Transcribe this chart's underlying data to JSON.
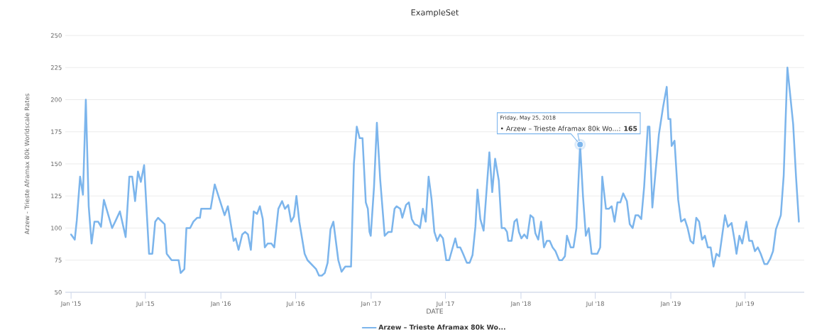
{
  "chart_data": {
    "type": "line",
    "title": "ExampleSet",
    "xlabel": "DATE",
    "ylabel": "Arzew - Trieste Aframax 80k Worldscale Rates",
    "x": [
      "2015-01-01",
      "2015-01-10",
      "2015-01-15",
      "2015-01-23",
      "2015-01-30",
      "2015-02-06",
      "2015-02-13",
      "2015-02-20",
      "2015-02-27",
      "2015-03-08",
      "2015-03-15",
      "2015-03-22",
      "2015-04-01",
      "2015-04-11",
      "2015-04-20",
      "2015-04-30",
      "2015-05-14",
      "2015-05-23",
      "2015-05-30",
      "2015-06-06",
      "2015-06-13",
      "2015-06-20",
      "2015-06-28",
      "2015-07-10",
      "2015-07-18",
      "2015-07-25",
      "2015-08-01",
      "2015-08-17",
      "2015-08-22",
      "2015-09-03",
      "2015-09-20",
      "2015-09-25",
      "2015-10-04",
      "2015-10-09",
      "2015-10-18",
      "2015-10-26",
      "2015-11-04",
      "2015-11-11",
      "2015-11-14",
      "2015-12-07",
      "2015-12-17",
      "2016-01-10",
      "2016-01-18",
      "2016-02-01",
      "2016-02-06",
      "2016-02-13",
      "2016-02-22",
      "2016-02-29",
      "2016-03-07",
      "2016-03-14",
      "2016-03-21",
      "2016-03-29",
      "2016-04-05",
      "2016-04-12",
      "2016-04-17",
      "2016-04-24",
      "2016-05-03",
      "2016-05-10",
      "2016-05-20",
      "2016-05-29",
      "2016-06-05",
      "2016-06-13",
      "2016-06-20",
      "2016-06-27",
      "2016-07-03",
      "2016-07-10",
      "2016-07-23",
      "2016-07-30",
      "2016-08-20",
      "2016-08-27",
      "2016-09-03",
      "2016-09-10",
      "2016-09-17",
      "2016-09-24",
      "2016-10-01",
      "2016-10-13",
      "2016-10-21",
      "2016-10-30",
      "2016-11-13",
      "2016-11-20",
      "2016-11-27",
      "2016-12-04",
      "2016-12-11",
      "2016-12-19",
      "2016-12-24",
      "2016-12-28",
      "2016-12-31",
      "2017-01-08",
      "2017-01-15",
      "2017-01-23",
      "2017-02-03",
      "2017-02-12",
      "2017-02-20",
      "2017-02-27",
      "2017-03-04",
      "2017-03-13",
      "2017-03-18",
      "2017-03-27",
      "2017-04-03",
      "2017-04-10",
      "2017-04-17",
      "2017-04-25",
      "2017-04-30",
      "2017-05-07",
      "2017-05-14",
      "2017-05-21",
      "2017-05-28",
      "2017-06-04",
      "2017-06-11",
      "2017-06-18",
      "2017-06-25",
      "2017-07-03",
      "2017-07-10",
      "2017-07-25",
      "2017-07-30",
      "2017-08-06",
      "2017-08-13",
      "2017-08-22",
      "2017-08-29",
      "2017-09-05",
      "2017-09-12",
      "2017-09-17",
      "2017-09-24",
      "2017-10-02",
      "2017-10-16",
      "2017-10-23",
      "2017-10-30",
      "2017-11-08",
      "2017-11-15",
      "2017-11-22",
      "2017-11-28",
      "2017-12-01",
      "2017-12-09",
      "2017-12-16",
      "2017-12-22",
      "2017-12-27",
      "2018-01-02",
      "2018-01-09",
      "2018-01-16",
      "2018-01-24",
      "2018-01-31",
      "2018-02-05",
      "2018-02-12",
      "2018-02-19",
      "2018-02-26",
      "2018-03-05",
      "2018-03-12",
      "2018-03-19",
      "2018-03-26",
      "2018-04-04",
      "2018-04-11",
      "2018-04-18",
      "2018-04-23",
      "2018-05-02",
      "2018-05-09",
      "2018-05-16",
      "2018-05-25",
      "2018-06-01",
      "2018-06-08",
      "2018-06-15",
      "2018-06-22",
      "2018-07-06",
      "2018-07-13",
      "2018-07-18",
      "2018-07-27",
      "2018-08-03",
      "2018-08-10",
      "2018-08-17",
      "2018-08-24",
      "2018-08-31",
      "2018-09-07",
      "2018-09-16",
      "2018-09-23",
      "2018-09-30",
      "2018-10-07",
      "2018-10-14",
      "2018-10-21",
      "2018-10-28",
      "2018-11-06",
      "2018-11-10",
      "2018-11-17",
      "2018-11-26",
      "2018-12-03",
      "2018-12-13",
      "2018-12-22",
      "2018-12-26",
      "2018-12-31",
      "2019-01-03",
      "2019-01-10",
      "2019-01-19",
      "2019-01-26",
      "2019-02-04",
      "2019-02-11",
      "2019-02-18",
      "2019-02-25",
      "2019-03-04",
      "2019-03-11",
      "2019-03-18",
      "2019-03-25",
      "2019-04-01",
      "2019-04-08",
      "2019-04-15",
      "2019-04-22",
      "2019-04-29",
      "2019-05-06",
      "2019-05-13",
      "2019-05-20",
      "2019-05-29",
      "2019-06-05",
      "2019-06-10",
      "2019-06-17",
      "2019-06-24",
      "2019-07-04",
      "2019-07-11",
      "2019-07-18",
      "2019-07-25",
      "2019-08-01",
      "2019-08-08",
      "2019-08-17",
      "2019-08-24",
      "2019-08-31",
      "2019-09-07",
      "2019-09-14",
      "2019-09-26",
      "2019-10-03",
      "2019-10-12",
      "2019-10-26",
      "2019-11-02",
      "2019-11-09"
    ],
    "series": [
      {
        "name": "Arzew – Trieste Aframax 80k Wo...",
        "color": "#7cb5ec",
        "values": [
          95,
          91,
          106,
          140,
          126,
          200,
          117,
          88,
          105,
          105,
          101,
          122,
          111,
          100,
          106,
          113,
          93,
          140,
          140,
          121,
          144,
          136,
          149,
          80,
          80,
          105,
          108,
          103,
          80,
          75,
          75,
          65,
          68,
          100,
          100,
          105,
          108,
          108,
          115,
          115,
          134,
          110,
          117,
          90,
          92,
          83,
          95,
          97,
          95,
          83,
          113,
          111,
          117,
          107,
          85,
          88,
          88,
          85,
          115,
          121,
          115,
          118,
          105,
          109,
          125,
          105,
          80,
          75,
          68,
          63,
          63,
          65,
          73,
          99,
          105,
          75,
          66,
          70,
          70,
          150,
          179,
          170,
          170,
          120,
          115,
          97,
          94,
          132,
          182,
          138,
          94,
          97,
          97,
          115,
          117,
          115,
          108,
          118,
          120,
          107,
          103,
          102,
          100,
          115,
          105,
          140,
          123,
          97,
          90,
          95,
          92,
          75,
          75,
          92,
          85,
          85,
          80,
          73,
          73,
          79,
          101,
          130,
          107,
          98,
          159,
          128,
          154,
          137,
          100,
          100,
          97,
          90,
          90,
          105,
          107,
          97,
          92,
          95,
          92,
          110,
          108,
          96,
          91,
          105,
          85,
          90,
          90,
          85,
          82,
          75,
          75,
          78,
          94,
          85,
          85,
          100,
          165,
          125,
          94,
          100,
          80,
          80,
          85,
          140,
          115,
          115,
          117,
          105,
          120,
          120,
          127,
          121,
          103,
          100,
          110,
          110,
          107,
          132,
          179,
          179,
          116,
          148,
          173,
          194,
          210,
          185,
          185,
          164,
          168,
          122,
          105,
          107,
          100,
          90,
          88,
          108,
          105,
          91,
          94,
          85,
          85,
          70,
          80,
          78,
          94,
          110,
          101,
          104,
          91,
          80,
          94,
          88,
          105,
          90,
          90,
          82,
          85,
          80,
          72,
          72,
          76,
          82,
          99,
          110,
          141,
          225,
          181,
          140,
          105
        ]
      }
    ],
    "xlim": [
      "2014-12-18",
      "2019-11-22"
    ],
    "xticks": [
      {
        "value": "2015-01",
        "label": "Jan '15"
      },
      {
        "value": "2015-07",
        "label": "Jul '15"
      },
      {
        "value": "2016-01",
        "label": "Jan '16"
      },
      {
        "value": "2016-07",
        "label": "Jul '16"
      },
      {
        "value": "2017-01",
        "label": "Jan '17"
      },
      {
        "value": "2017-07",
        "label": "Jul '17"
      },
      {
        "value": "2018-01",
        "label": "Jan '18"
      },
      {
        "value": "2018-07",
        "label": "Jul '18"
      },
      {
        "value": "2019-01",
        "label": "Jan '19"
      },
      {
        "value": "2019-07",
        "label": "Jul '19"
      }
    ],
    "ylim": [
      50,
      250
    ],
    "yticks": [
      50,
      75,
      100,
      125,
      150,
      175,
      200,
      225,
      250
    ],
    "grid": "y",
    "legend": "bottom",
    "line_style": "solid",
    "annotations": [
      "Friday, May 25, 2018",
      {
        "text": "• Arzew – Trieste Aframax 80k Wo...: **165**",
        "x": "2018-05-25",
        "y": 165
      }
    ]
  }
}
